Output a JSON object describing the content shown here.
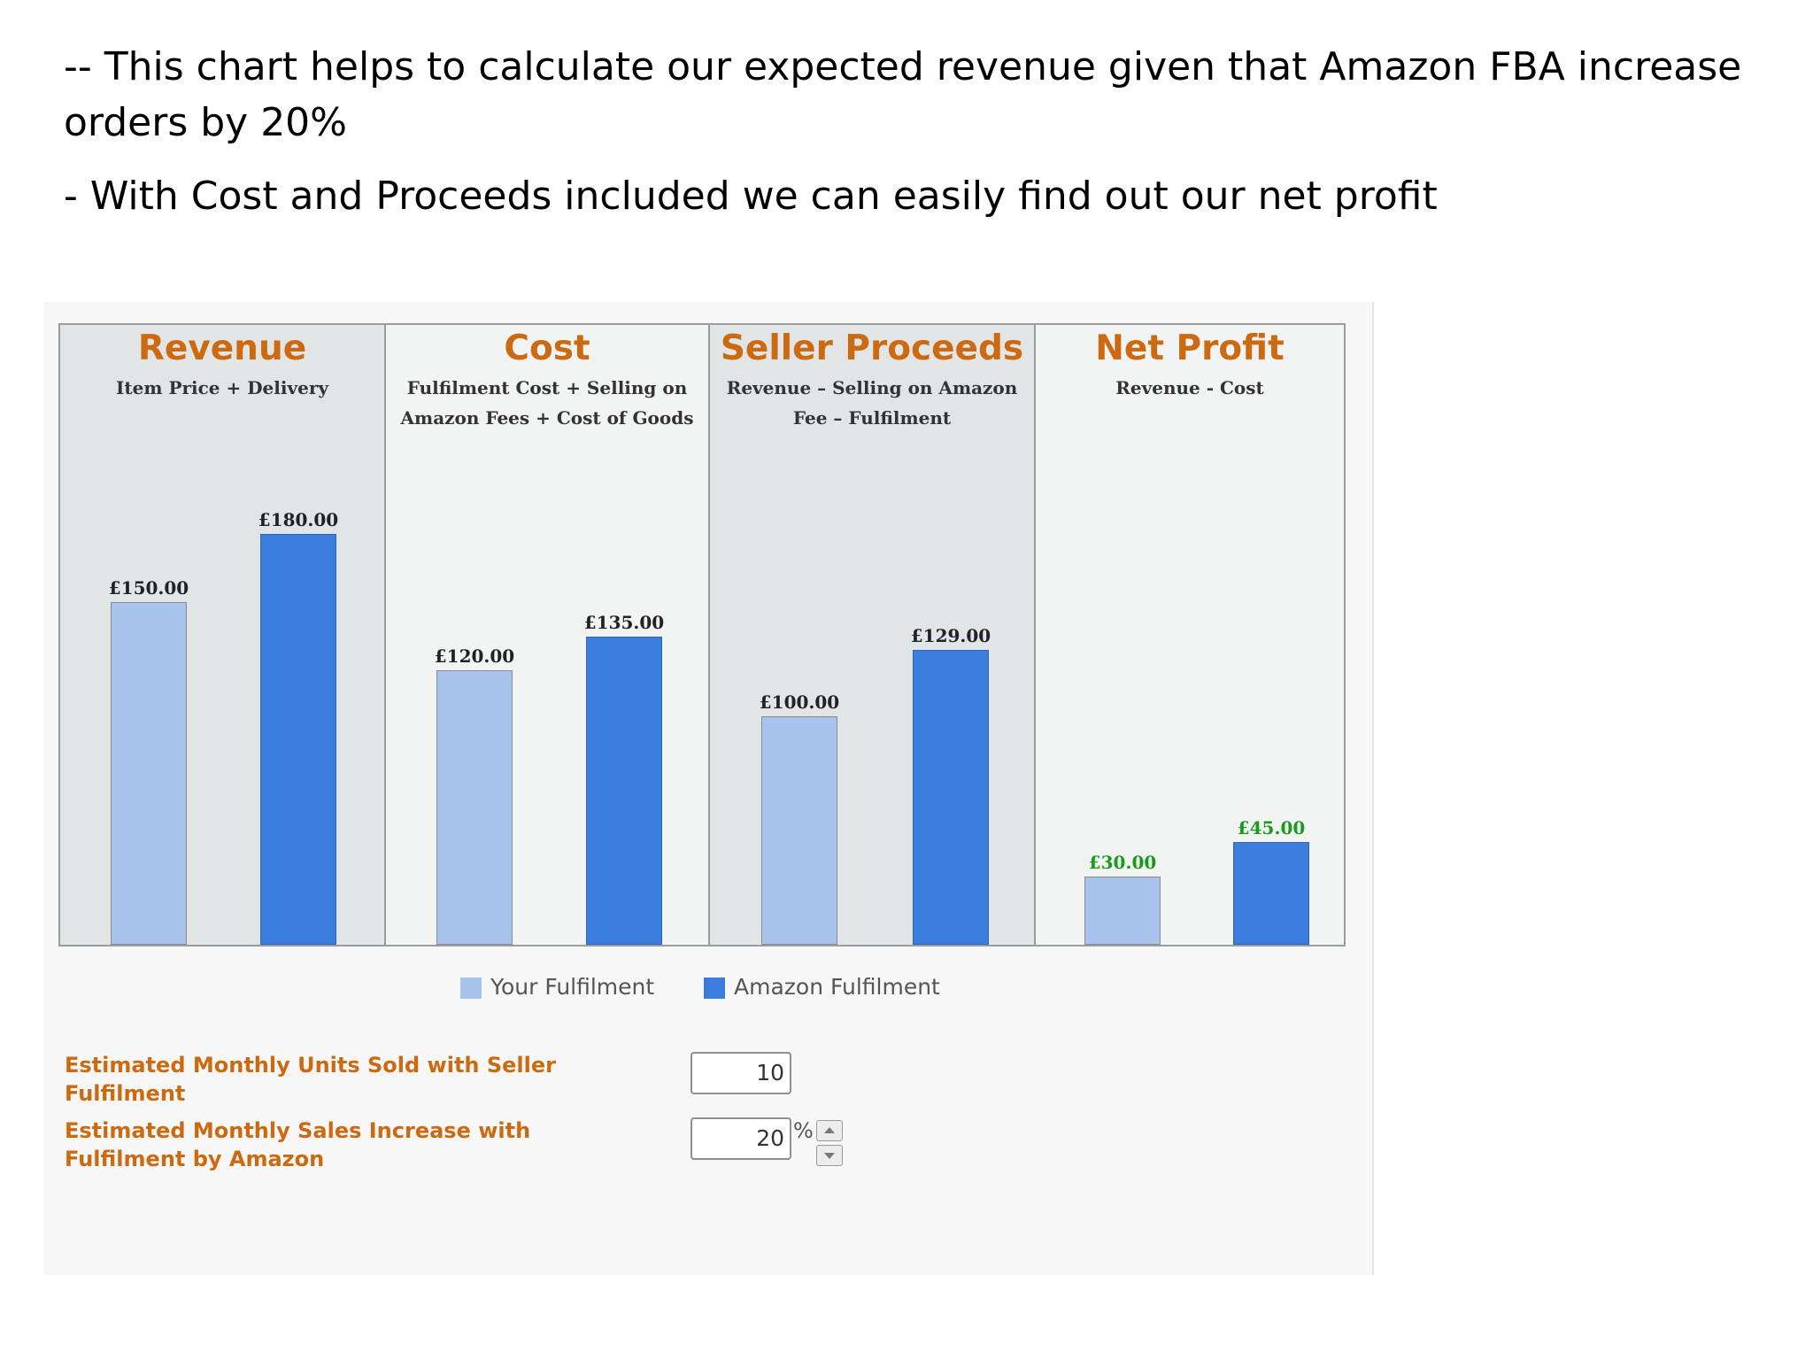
{
  "notes": {
    "line1": "-- This chart helps to calculate our expected revenue given that Amazon FBA increase orders by 20%",
    "line2": "-  With Cost and Proceeds included we can easily find out our net profit"
  },
  "colors": {
    "title_orange": "#cc6a12",
    "your_fulfilment": "#a9c4ec",
    "amazon_fulfilment": "#3b7ddd",
    "profit_green": "#1a9a1a"
  },
  "chart_data": {
    "type": "bar",
    "categories": [
      "Revenue",
      "Cost",
      "Seller Proceeds",
      "Net Profit"
    ],
    "subtitles": [
      "Item Price + Delivery",
      "Fulfilment Cost + Selling on Amazon Fees + Cost of Goods",
      "Revenue – Selling on Amazon Fee – Fulfilment",
      "Revenue - Cost"
    ],
    "series": [
      {
        "name": "Your Fulfilment",
        "values": [
          150,
          120,
          100,
          30
        ]
      },
      {
        "name": "Amazon Fulfilment",
        "values": [
          180,
          135,
          129,
          45
        ]
      }
    ],
    "value_labels": [
      [
        "£150.00",
        "£120.00",
        "£100.00",
        "£30.00"
      ],
      [
        "£180.00",
        "£135.00",
        "£129.00",
        "£45.00"
      ]
    ],
    "ylim": [
      0,
      250
    ],
    "legend_position": "bottom",
    "grid": false
  },
  "form": {
    "units_label": "Estimated Monthly Units Sold with Seller Fulfilment",
    "units_value": "10",
    "increase_label": "Estimated Monthly Sales Increase with Fulfilment by Amazon",
    "increase_value": "20",
    "increase_unit": "%"
  }
}
